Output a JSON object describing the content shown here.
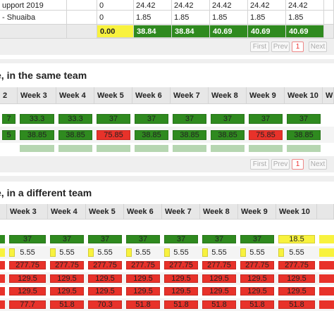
{
  "summary": {
    "rows": [
      [
        "upport 2019",
        "0",
        "24.42",
        "24.42",
        "24.42",
        "24.42",
        "24.42"
      ],
      [
        "- Shuaiba",
        "0",
        "1.85",
        "1.85",
        "1.85",
        "1.85",
        "1.85"
      ]
    ],
    "total": {
      "values": [
        "0.00",
        "38.84",
        "38.84",
        "40.69",
        "40.69",
        "40.69"
      ],
      "colors": [
        "#f8f23e",
        "#2f8a1f",
        "#2f8a1f",
        "#2f8a1f",
        "#2f8a1f",
        "#2f8a1f"
      ]
    }
  },
  "pagination_1": [
    "First",
    "Prev",
    "1",
    "Next"
  ],
  "section_same_team": {
    "title": "e, in the same team",
    "headers": [
      "2",
      "Week 3",
      "Week 4",
      "Week 5",
      "Week 6",
      "Week 7",
      "Week 8",
      "Week 9",
      "Week 10",
      "W"
    ],
    "rows": [
      {
        "values": [
          "7",
          "33.3",
          "33.3",
          "37",
          "37",
          "37",
          "37",
          "37",
          "37"
        ],
        "colors": [
          "#2f8a1f",
          "#2f8a1f",
          "#2f8a1f",
          "#2f8a1f",
          "#2f8a1f",
          "#2f8a1f",
          "#2f8a1f",
          "#2f8a1f",
          "#2f8a1f"
        ]
      },
      {
        "values": [
          "5",
          "38.85",
          "38.85",
          "75.85",
          "38.85",
          "38.85",
          "38.85",
          "75.85",
          "38.85"
        ],
        "colors": [
          "#2f8a1f",
          "#2f8a1f",
          "#2f8a1f",
          "#e8322a",
          "#2f8a1f",
          "#2f8a1f",
          "#2f8a1f",
          "#e8322a",
          "#2f8a1f"
        ]
      }
    ]
  },
  "pagination_2": [
    "First",
    "Prev",
    "1",
    "Next"
  ],
  "section_different_team": {
    "title": "e, in a different team",
    "headers": [
      "Week 3",
      "Week 4",
      "Week 5",
      "Week 6",
      "Week 7",
      "Week 8",
      "Week 9",
      "Week 10"
    ],
    "rows": [
      {
        "values": [
          "37",
          "37",
          "37",
          "37",
          "37",
          "37",
          "37",
          "18.5"
        ],
        "colors": [
          "#2f8a1f",
          "#2f8a1f",
          "#2f8a1f",
          "#2f8a1f",
          "#2f8a1f",
          "#2f8a1f",
          "#2f8a1f",
          "#f8f23e"
        ]
      },
      {
        "values": [
          "5.55",
          "5.55",
          "5.55",
          "5.55",
          "5.55",
          "5.55",
          "5.55",
          "5.55"
        ],
        "colors": [
          "#f8f23e",
          "#f8f23e",
          "#f8f23e",
          "#f8f23e",
          "#f8f23e",
          "#f8f23e",
          "#f8f23e",
          "#f8f23e"
        ]
      },
      {
        "values": [
          "277.75",
          "277.75",
          "277.75",
          "277.75",
          "277.75",
          "277.75",
          "277.75",
          "277.75"
        ],
        "colors": [
          "#e8322a",
          "#e8322a",
          "#e8322a",
          "#e8322a",
          "#e8322a",
          "#e8322a",
          "#e8322a",
          "#e8322a"
        ]
      },
      {
        "values": [
          "129.5",
          "129.5",
          "129.5",
          "129.5",
          "129.5",
          "129.5",
          "129.5",
          "129.5"
        ],
        "colors": [
          "#e8322a",
          "#e8322a",
          "#e8322a",
          "#e8322a",
          "#e8322a",
          "#e8322a",
          "#e8322a",
          "#e8322a"
        ]
      },
      {
        "values": [
          "129.5",
          "129.5",
          "129.5",
          "129.5",
          "129.5",
          "129.5",
          "129.5",
          "129.5"
        ],
        "colors": [
          "#e8322a",
          "#e8322a",
          "#e8322a",
          "#e8322a",
          "#e8322a",
          "#e8322a",
          "#e8322a",
          "#e8322a"
        ]
      },
      {
        "values": [
          "77.7",
          "51.8",
          "70.3",
          "51.8",
          "51.8",
          "51.8",
          "51.8",
          "51.8"
        ],
        "colors": [
          "#e8322a",
          "#e8322a",
          "#e8322a",
          "#e8322a",
          "#e8322a",
          "#e8322a",
          "#e8322a",
          "#e8322a"
        ]
      }
    ]
  }
}
